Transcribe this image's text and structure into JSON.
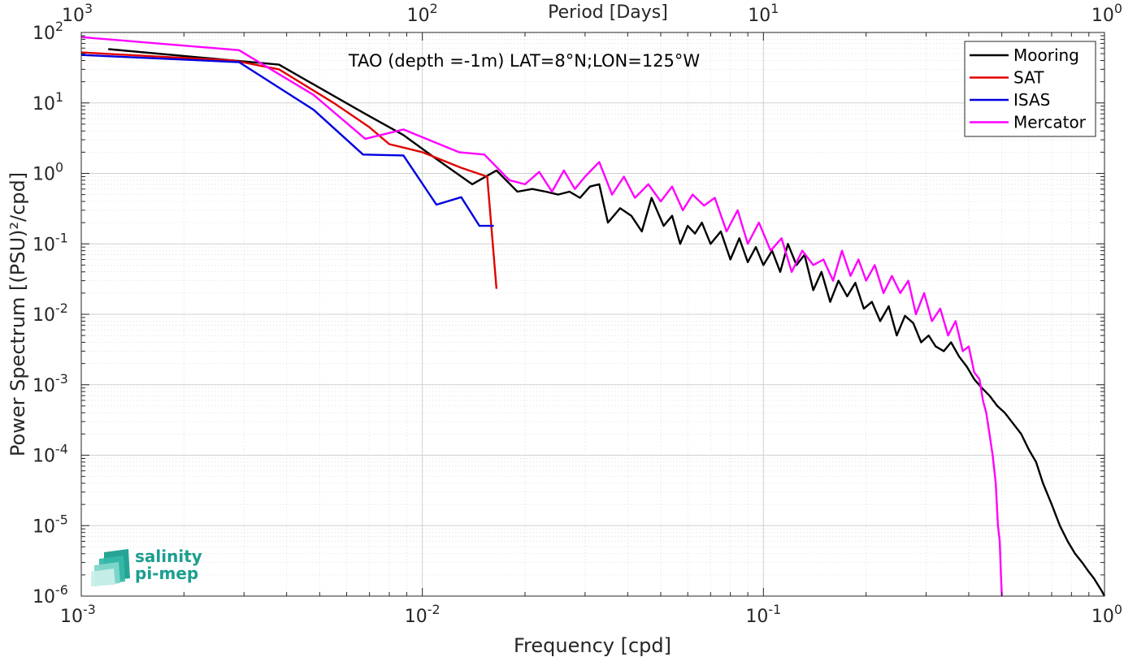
{
  "chart_data": {
    "type": "line",
    "title": "TAO (depth =-1m) LAT=8°N;LON=125°W",
    "xlabel": "Frequency [cpd]",
    "ylabel": "Power Spectrum [(PSU)²/cpd]",
    "x2label": "Period [Days]",
    "xscale": "log",
    "yscale": "log",
    "xlim": [
      0.001,
      1
    ],
    "ylim": [
      1e-06,
      100
    ],
    "grid": true,
    "legend_position": "top-right",
    "x_ticks": [
      {
        "value": 0.001,
        "base": "10",
        "exp": "-3"
      },
      {
        "value": 0.01,
        "base": "10",
        "exp": "-2"
      },
      {
        "value": 0.1,
        "base": "10",
        "exp": "-1"
      },
      {
        "value": 1,
        "base": "10",
        "exp": "0"
      }
    ],
    "x2_ticks": [
      {
        "value": 0.001,
        "base": "10",
        "exp": "3"
      },
      {
        "value": 0.01,
        "base": "10",
        "exp": "2"
      },
      {
        "value": 0.1,
        "base": "10",
        "exp": "1"
      },
      {
        "value": 1,
        "base": "10",
        "exp": "0"
      }
    ],
    "y_ticks": [
      {
        "value": 100,
        "base": "10",
        "exp": "2"
      },
      {
        "value": 10,
        "base": "10",
        "exp": "1"
      },
      {
        "value": 1,
        "base": "10",
        "exp": "0"
      },
      {
        "value": 0.1,
        "base": "10",
        "exp": "-1"
      },
      {
        "value": 0.01,
        "base": "10",
        "exp": "-2"
      },
      {
        "value": 0.001,
        "base": "10",
        "exp": "-3"
      },
      {
        "value": 0.0001,
        "base": "10",
        "exp": "-4"
      },
      {
        "value": 1e-05,
        "base": "10",
        "exp": "-5"
      },
      {
        "value": 1e-06,
        "base": "10",
        "exp": "-6"
      }
    ],
    "series": [
      {
        "name": "Mooring",
        "color": "#000000",
        "x": [
          0.0012,
          0.0038,
          0.0068,
          0.0088,
          0.011,
          0.014,
          0.0165,
          0.019,
          0.021,
          0.023,
          0.025,
          0.027,
          0.029,
          0.031,
          0.033,
          0.035,
          0.038,
          0.041,
          0.044,
          0.047,
          0.051,
          0.054,
          0.057,
          0.06,
          0.063,
          0.066,
          0.07,
          0.075,
          0.08,
          0.085,
          0.09,
          0.095,
          0.1,
          0.106,
          0.112,
          0.118,
          0.125,
          0.132,
          0.14,
          0.148,
          0.157,
          0.166,
          0.176,
          0.186,
          0.197,
          0.208,
          0.22,
          0.233,
          0.246,
          0.26,
          0.275,
          0.29,
          0.305,
          0.32,
          0.338,
          0.355,
          0.375,
          0.395,
          0.415,
          0.437,
          0.46,
          0.485,
          0.51,
          0.54,
          0.57,
          0.6,
          0.63,
          0.66,
          0.7,
          0.74,
          0.78,
          0.82,
          0.86,
          0.9,
          0.93,
          0.96,
          0.98,
          1.0
        ],
        "y": [
          58,
          35,
          7,
          3.5,
          1.6,
          0.7,
          1.1,
          0.55,
          0.6,
          0.55,
          0.5,
          0.55,
          0.45,
          0.65,
          0.7,
          0.2,
          0.32,
          0.25,
          0.15,
          0.45,
          0.18,
          0.25,
          0.1,
          0.18,
          0.14,
          0.2,
          0.1,
          0.15,
          0.06,
          0.12,
          0.055,
          0.09,
          0.05,
          0.08,
          0.04,
          0.1,
          0.05,
          0.07,
          0.022,
          0.04,
          0.015,
          0.03,
          0.018,
          0.028,
          0.012,
          0.015,
          0.008,
          0.013,
          0.005,
          0.0095,
          0.0075,
          0.004,
          0.005,
          0.0035,
          0.003,
          0.004,
          0.0025,
          0.0018,
          0.0012,
          0.0009,
          0.0007,
          0.0005,
          0.0004,
          0.00028,
          0.0002,
          0.00012,
          8e-05,
          4e-05,
          2e-05,
          1e-05,
          6e-06,
          4e-06,
          3e-06,
          2.2e-06,
          1.8e-06,
          1.4e-06,
          1.2e-06,
          1e-06
        ]
      },
      {
        "name": "SAT",
        "color": "#e00000",
        "x": [
          0.001,
          0.0028,
          0.0038,
          0.0055,
          0.007,
          0.008,
          0.01,
          0.013,
          0.0155,
          0.0165
        ],
        "y": [
          52,
          40,
          30,
          10,
          4.5,
          2.6,
          2.0,
          1.2,
          0.9,
          0.023
        ]
      },
      {
        "name": "ISAS",
        "color": "#0000e0",
        "x": [
          0.001,
          0.0029,
          0.0048,
          0.0067,
          0.0088,
          0.011,
          0.013,
          0.0147,
          0.0162
        ],
        "y": [
          48,
          38,
          8,
          1.85,
          1.8,
          0.36,
          0.46,
          0.18,
          0.18
        ]
      },
      {
        "name": "Mercator",
        "color": "#ff00ff",
        "x": [
          0.001,
          0.0029,
          0.0048,
          0.0068,
          0.0088,
          0.0128,
          0.0152,
          0.018,
          0.02,
          0.022,
          0.024,
          0.026,
          0.028,
          0.03,
          0.033,
          0.036,
          0.039,
          0.042,
          0.046,
          0.05,
          0.054,
          0.058,
          0.062,
          0.067,
          0.072,
          0.078,
          0.084,
          0.09,
          0.097,
          0.105,
          0.113,
          0.121,
          0.13,
          0.14,
          0.15,
          0.16,
          0.17,
          0.18,
          0.19,
          0.2,
          0.212,
          0.225,
          0.238,
          0.252,
          0.266,
          0.28,
          0.296,
          0.312,
          0.33,
          0.348,
          0.366,
          0.384,
          0.4,
          0.415,
          0.43,
          0.44,
          0.45,
          0.46,
          0.47,
          0.48,
          0.487,
          0.493,
          0.497,
          0.5
        ],
        "y": [
          86,
          56,
          13,
          3.1,
          4.2,
          2.0,
          1.85,
          0.8,
          0.7,
          1.05,
          0.55,
          1.1,
          0.6,
          0.9,
          1.45,
          0.5,
          0.9,
          0.45,
          0.7,
          0.4,
          0.65,
          0.3,
          0.5,
          0.35,
          0.45,
          0.15,
          0.3,
          0.1,
          0.2,
          0.08,
          0.12,
          0.04,
          0.08,
          0.05,
          0.06,
          0.03,
          0.08,
          0.035,
          0.06,
          0.03,
          0.05,
          0.02,
          0.035,
          0.02,
          0.03,
          0.01,
          0.02,
          0.008,
          0.012,
          0.005,
          0.008,
          0.003,
          0.0035,
          0.0015,
          0.0012,
          0.0006,
          0.0004,
          0.0002,
          0.0001,
          4e-05,
          1e-05,
          6e-06,
          2e-06,
          1e-06
        ]
      }
    ]
  },
  "logo": {
    "line1": "salinity",
    "line2": "pi-mep",
    "colors": [
      "#1b9e8f",
      "#35b8a6",
      "#7fd6c9",
      "#c8eee8"
    ]
  }
}
